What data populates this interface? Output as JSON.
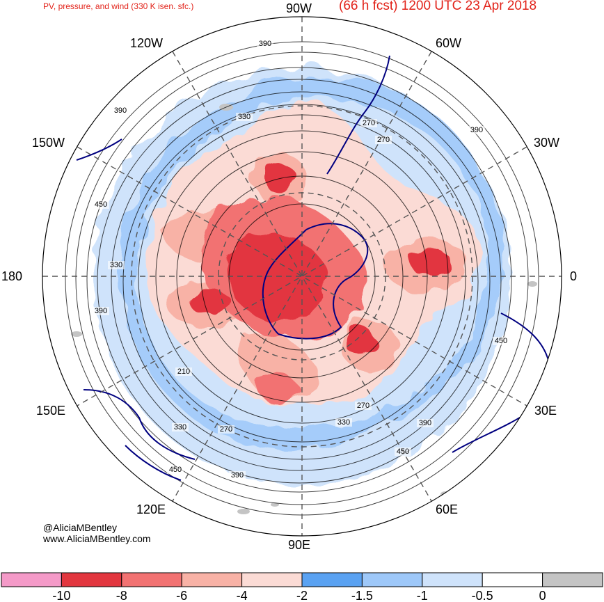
{
  "header": {
    "subtitle": "PV, pressure, and wind (330 K isen. sfc.)",
    "title": "(66 h fcst) 1200 UTC 23 Apr 2018"
  },
  "credit": {
    "handle": "@AliciaMBentley",
    "website": "www.AliciaMBentley.com"
  },
  "longitude_labels": [
    {
      "id": "90w",
      "text": "90W"
    },
    {
      "id": "60w",
      "text": "60W"
    },
    {
      "id": "30w",
      "text": "30W"
    },
    {
      "id": "0",
      "text": "0"
    },
    {
      "id": "30e",
      "text": "30E"
    },
    {
      "id": "60e",
      "text": "60E"
    },
    {
      "id": "90e",
      "text": "90E"
    },
    {
      "id": "120e",
      "text": "120E"
    },
    {
      "id": "150e",
      "text": "150E"
    },
    {
      "id": "180",
      "text": "180"
    },
    {
      "id": "150w",
      "text": "150W"
    },
    {
      "id": "120w",
      "text": "120W"
    }
  ],
  "contour_labels": [
    "390",
    "330",
    "390",
    "270",
    "390",
    "270",
    "450",
    "330",
    "390",
    "210",
    "330",
    "270",
    "450",
    "390",
    "270",
    "330",
    "390",
    "450",
    "450"
  ],
  "colorbar": {
    "ticks": [
      "-10",
      "-8",
      "-6",
      "-4",
      "-2",
      "-1.5",
      "-1",
      "-0.5",
      "0"
    ],
    "colors": [
      "#f49ac8",
      "#e2363f",
      "#f27272",
      "#f8b2a6",
      "#fbdbd5",
      "#5aa2f2",
      "#9ec8f9",
      "#cfe3fb",
      "#ffffff",
      "#c4c4c4"
    ]
  },
  "map": {
    "projection": "north polar stereographic",
    "colors": {
      "land_outline": "#000080",
      "contour": "#000000",
      "graticule": "#555555",
      "title": "#e2231a"
    }
  }
}
